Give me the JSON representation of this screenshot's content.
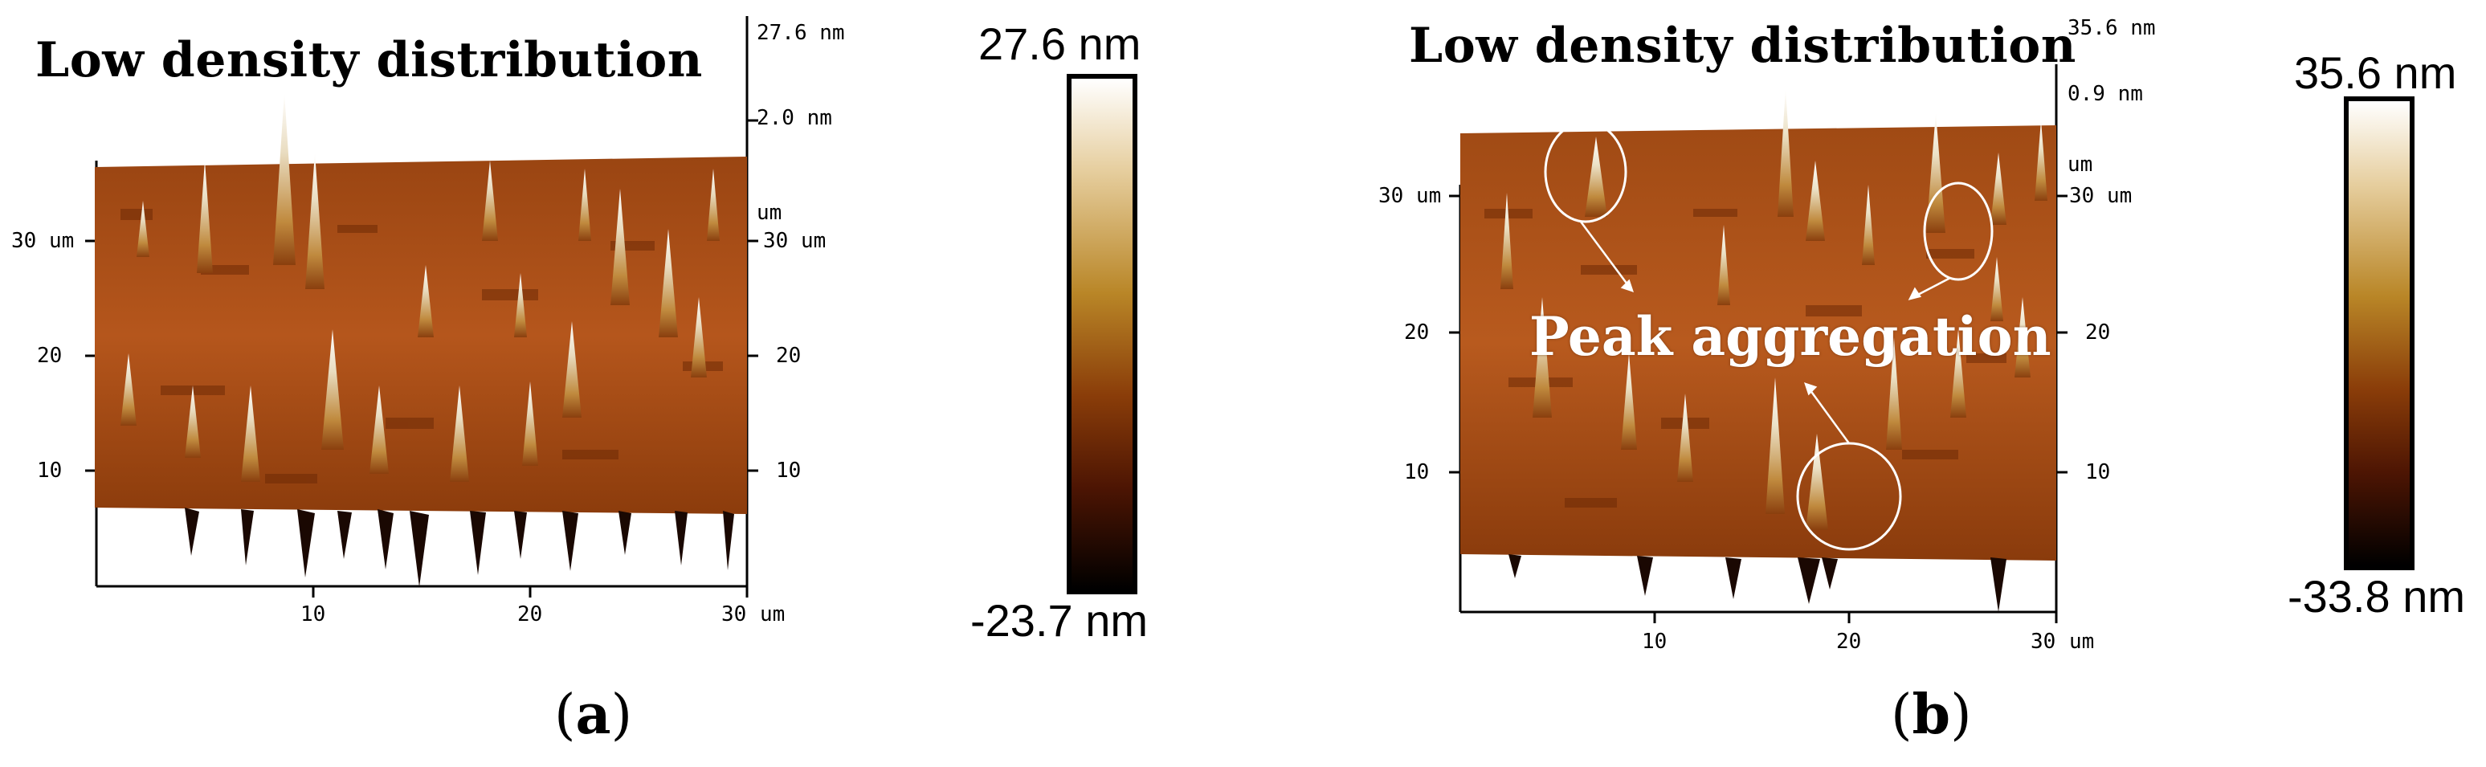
{
  "panel_a": {
    "title": "Low density distribution",
    "z_top": "27.6 nm",
    "z_mid": "2.0 nm",
    "um_label": "um",
    "x_ticks": [
      "10",
      "20",
      "30"
    ],
    "x_unit": "um",
    "y_ticks_left": [
      "30 um",
      "20",
      "10"
    ],
    "y_ticks_right": [
      "30 um",
      "20",
      "10"
    ],
    "colorbar_max": "27.6 nm",
    "colorbar_min": "-23.7 nm",
    "caption_open": "(",
    "caption_letter": "a",
    "caption_close": ")"
  },
  "panel_b": {
    "title": "Low density distribution",
    "z_top": "35.6 nm",
    "z_mid": "0.9 nm",
    "um_label": "um",
    "annotation": "Peak aggregation",
    "x_ticks": [
      "10",
      "20",
      "30"
    ],
    "x_unit": "um",
    "y_ticks_left": [
      "30 um",
      "20",
      "10"
    ],
    "y_ticks_right": [
      "30 um",
      "20",
      "10"
    ],
    "colorbar_max": "35.6 nm",
    "colorbar_min": "-33.8 nm",
    "caption_open": "(",
    "caption_letter": "b",
    "caption_close": ")"
  },
  "colors": {
    "surface_dark": "#7a3208",
    "surface_mid": "#b5561c",
    "peak_light": "#f4eee0",
    "colorbar_top": "#ffffff",
    "colorbar_mid": "#b98627",
    "colorbar_bottom": "#000000"
  }
}
